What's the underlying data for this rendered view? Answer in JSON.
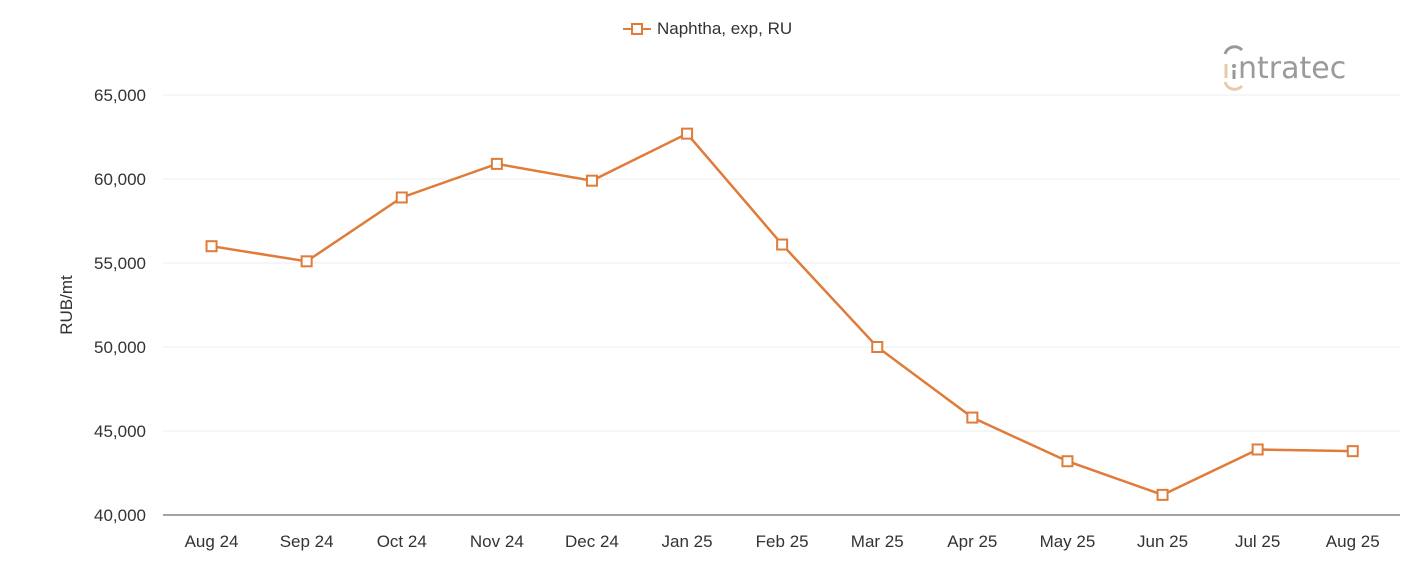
{
  "chart_data": {
    "type": "line",
    "title": "",
    "xlabel": "",
    "ylabel": "RUB/mt",
    "ylim": [
      40000,
      65000
    ],
    "yticks": [
      40000,
      45000,
      50000,
      55000,
      60000,
      65000
    ],
    "ytick_labels": [
      "40,000",
      "45,000",
      "50,000",
      "55,000",
      "60,000",
      "65,000"
    ],
    "grid": true,
    "legend_position": "top-center",
    "categories": [
      "Aug 24",
      "Sep 24",
      "Oct 24",
      "Nov 24",
      "Dec 24",
      "Jan 25",
      "Feb 25",
      "Mar 25",
      "Apr 25",
      "May 25",
      "Jun 25",
      "Jul 25",
      "Aug 25"
    ],
    "series": [
      {
        "name": "Naphtha, exp, RU",
        "color": "#e07b39",
        "marker": "square-open",
        "values": [
          56000,
          55100,
          58900,
          60900,
          59900,
          62700,
          56100,
          50000,
          45800,
          43200,
          41200,
          43900,
          43800
        ]
      }
    ]
  },
  "watermark": {
    "text": "intratec"
  }
}
